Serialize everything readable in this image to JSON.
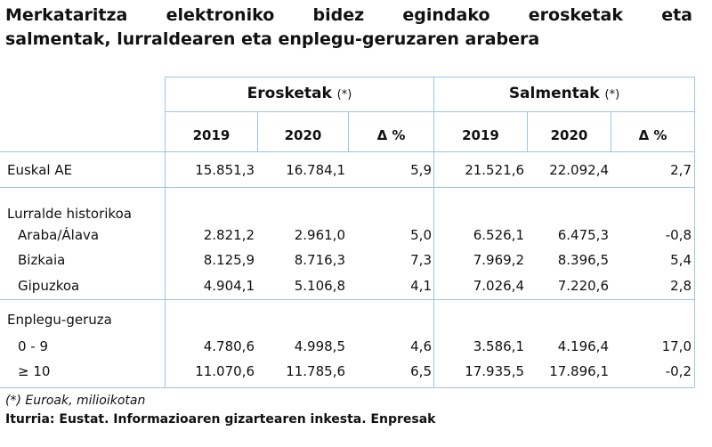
{
  "title": [
    "Merkataritza elektroniko bidez egindako erosketak eta",
    "salmentak, lurraldearen eta enplegu-geruzaren arabera"
  ],
  "table": {
    "groups": [
      {
        "name": "Erosketak",
        "note": "(*)"
      },
      {
        "name": "Salmentak",
        "note": "(*)"
      }
    ],
    "columns": [
      "2019",
      "2020",
      "Δ %",
      "2019",
      "2020",
      "Δ %"
    ],
    "rows": [
      {
        "label": "Euskal AE",
        "values": [
          "15.851,3",
          "16.784,1",
          "5,9",
          "21.521,6",
          "22.092,4",
          "2,7"
        ]
      },
      {
        "label": "Lurralde historikoa"
      },
      {
        "label": "Araba/Álava",
        "values": [
          "2.821,2",
          "2.961,0",
          "5,0",
          "6.526,1",
          "6.475,3",
          "-0,8"
        ]
      },
      {
        "label": "Bizkaia",
        "values": [
          "8.125,9",
          "8.716,3",
          "7,3",
          "7.969,2",
          "8.396,5",
          "5,4"
        ]
      },
      {
        "label": "Gipuzkoa",
        "values": [
          "4.904,1",
          "5.106,8",
          "4,1",
          "7.026,4",
          "7.220,6",
          "2,8"
        ]
      },
      {
        "label": "Enplegu-geruza"
      },
      {
        "label": "0 - 9",
        "values": [
          "4.780,6",
          "4.998,5",
          "4,6",
          "3.586,1",
          "4.196,4",
          "17,0"
        ]
      },
      {
        "label": "≥ 10",
        "values": [
          "11.070,6",
          "11.785,6",
          "6,5",
          "17.935,5",
          "17.896,1",
          "-0,2"
        ]
      }
    ]
  },
  "footnote": "(*) Euroak, milioikotan",
  "source": "Iturria: Eustat. Informazioaren gizartearen inkesta. Enpresak"
}
